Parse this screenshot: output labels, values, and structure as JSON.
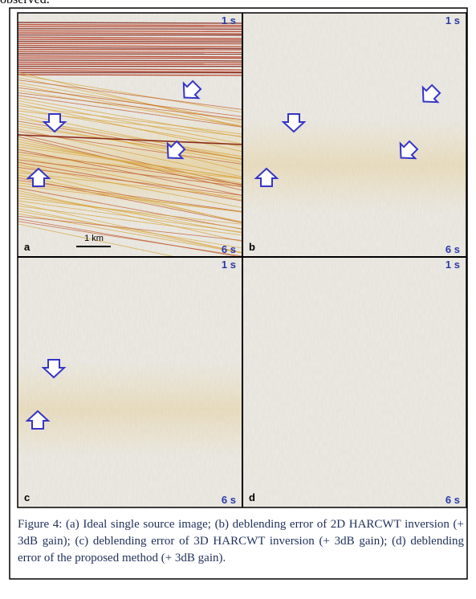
{
  "header_fragment": "observed.",
  "panels": [
    {
      "label": "a",
      "top_time": "1 s",
      "bottom_time": "6 s",
      "scale": "1 km"
    },
    {
      "label": "b",
      "top_time": "1 s",
      "bottom_time": "6 s"
    },
    {
      "label": "c",
      "top_time": "1 s",
      "bottom_time": "6 s"
    },
    {
      "label": "d",
      "top_time": "1 s",
      "bottom_time": "6 s"
    }
  ],
  "caption": "Figure 4: (a) Ideal single source image; (b) deblending error of 2D HARCWT inversion (+ 3dB gain); (c) deblending error of 3D HARCWT inversion (+ 3dB gain); (d) deblending error of the proposed method (+ 3dB gain)."
}
